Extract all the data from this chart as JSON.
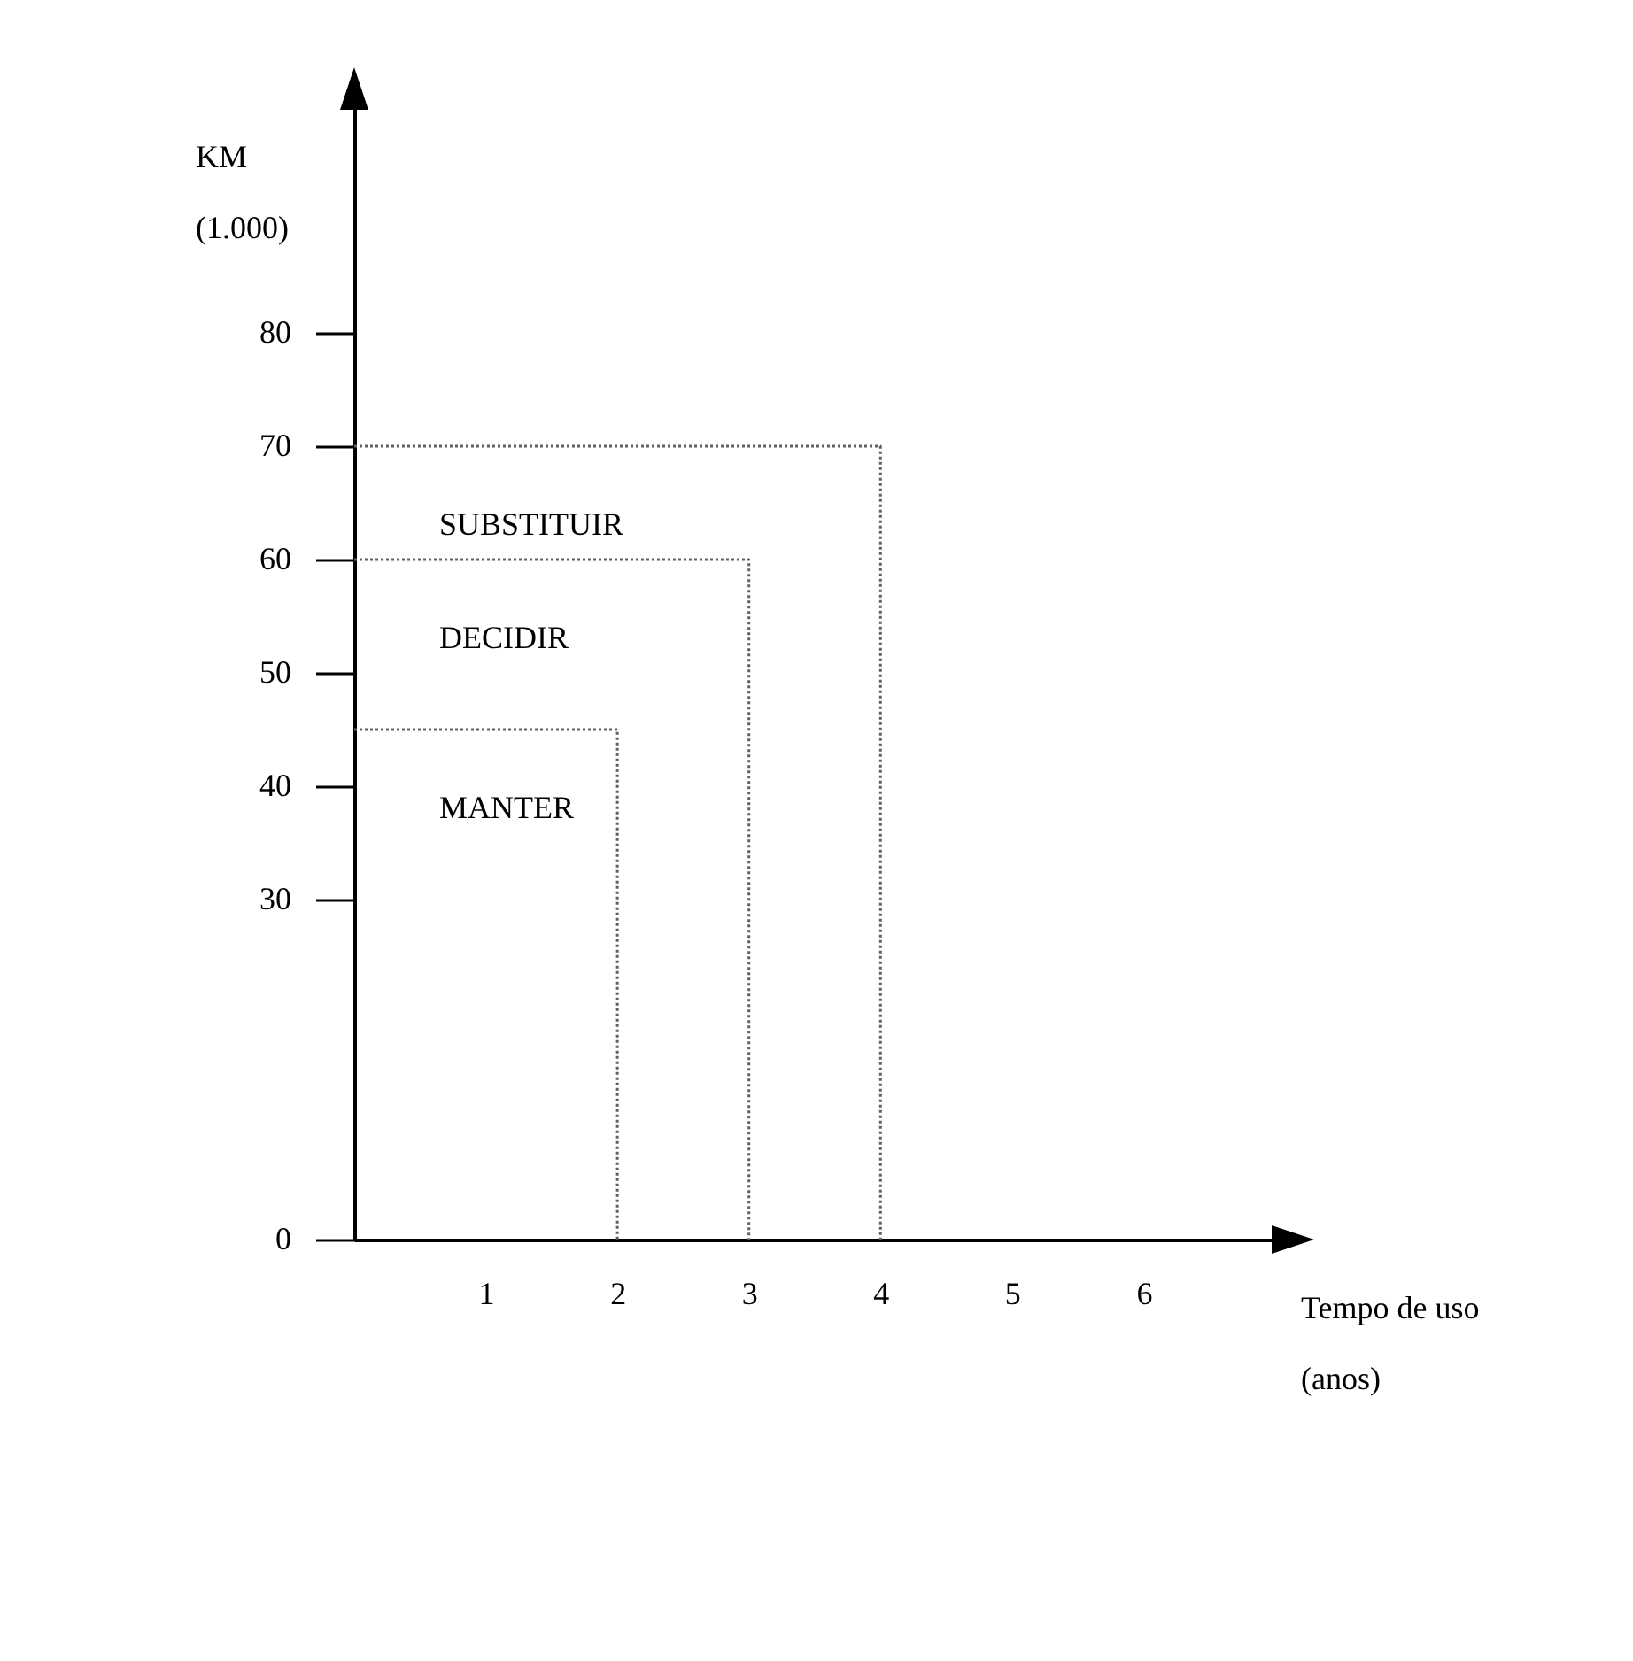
{
  "chart_data": {
    "type": "line",
    "xlabel": "Tempo de uso (anos)",
    "ylabel": "KM (1.000)",
    "xlim": [
      0,
      7
    ],
    "xticks": [
      1,
      2,
      3,
      4,
      5,
      6
    ],
    "ylim": [
      0,
      100
    ],
    "yticks": [
      0,
      30,
      40,
      50,
      60,
      70,
      80
    ],
    "line_style": "dotted",
    "marker": "none",
    "grid": false,
    "series": [
      {
        "color": "#606060",
        "x": [
          0,
          2,
          2
        ],
        "values": [
          45,
          45,
          0
        ]
      },
      {
        "color": "#606060",
        "x": [
          0,
          3,
          3
        ],
        "values": [
          60,
          60,
          0
        ]
      },
      {
        "color": "#606060",
        "x": [
          0,
          4,
          4
        ],
        "values": [
          70,
          70,
          0
        ]
      }
    ],
    "annotations": [
      "SUBSTITUIR",
      "DECIDIR",
      "MANTER"
    ]
  }
}
